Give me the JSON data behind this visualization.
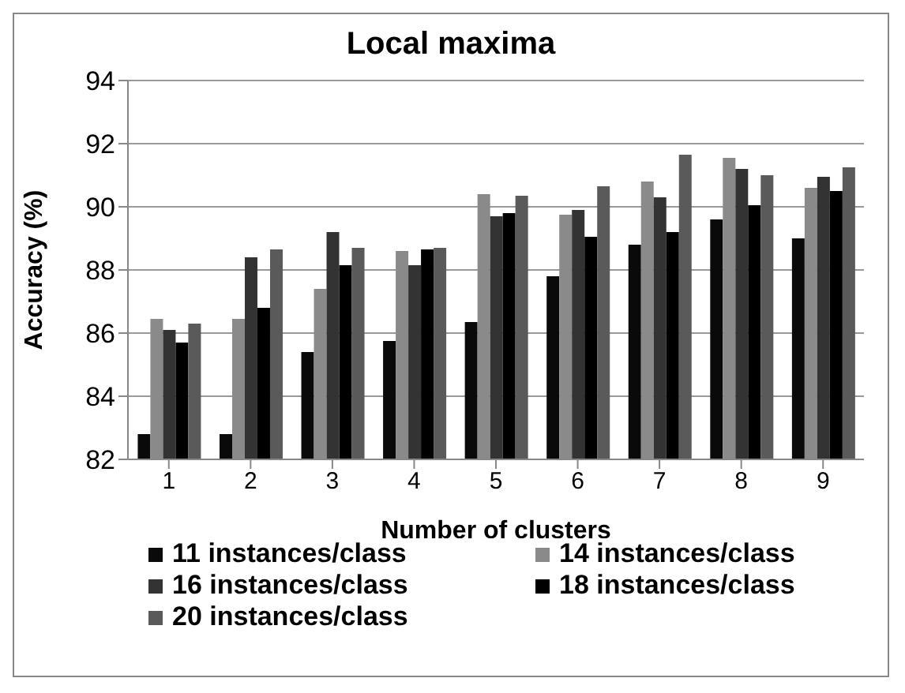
{
  "chart_data": {
    "type": "bar",
    "title": "Local maxima",
    "xlabel": "Number of clusters",
    "ylabel": "Accuracy (%)",
    "categories": [
      "1",
      "2",
      "3",
      "4",
      "5",
      "6",
      "7",
      "8",
      "9"
    ],
    "series": [
      {
        "name": "11 instances/class",
        "color": "#0a0a0a",
        "values": [
          82.8,
          82.8,
          85.4,
          85.75,
          86.35,
          87.8,
          88.8,
          89.6,
          89.0
        ]
      },
      {
        "name": "14 instances/class",
        "color": "#8a8a8a",
        "values": [
          86.45,
          86.45,
          87.4,
          88.6,
          90.4,
          89.75,
          90.8,
          91.55,
          90.6
        ]
      },
      {
        "name": "16 instances/class",
        "color": "#333333",
        "values": [
          86.1,
          88.4,
          89.2,
          88.15,
          89.7,
          89.9,
          90.3,
          91.2,
          90.95
        ]
      },
      {
        "name": "18 instances/class",
        "color": "#000000",
        "values": [
          85.7,
          86.8,
          88.15,
          88.65,
          89.8,
          89.05,
          89.2,
          90.05,
          90.5
        ]
      },
      {
        "name": "20 instances/class",
        "color": "#5a5a5a",
        "values": [
          86.3,
          88.65,
          88.7,
          88.7,
          90.35,
          90.65,
          91.65,
          91.0,
          91.25
        ]
      }
    ],
    "ylim": [
      82,
      94
    ],
    "yticks": [
      82,
      84,
      86,
      88,
      90,
      92,
      94
    ],
    "grid": "y",
    "legend": "bottom"
  }
}
